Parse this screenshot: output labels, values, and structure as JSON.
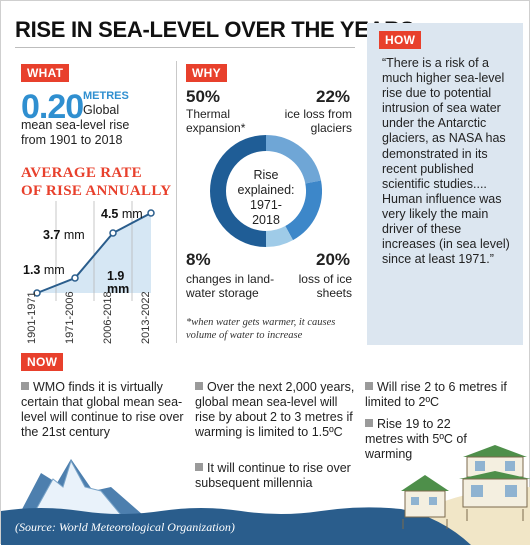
{
  "title": "RISE IN SEA-LEVEL OVER THE YEARS",
  "what": {
    "tag": "WHAT",
    "big_value": "0.20",
    "unit": "METRES",
    "line1": "Global",
    "line2": "mean sea-level rise",
    "line3": "from 1901 to 2018",
    "avg_title_1": "AVERAGE RATE",
    "avg_title_2": "OF RISE ANNUALLY",
    "periods": [
      "1901-1971",
      "1971-2006",
      "2006-2018",
      "2013-2022"
    ],
    "rates": [
      {
        "value": "1.3",
        "unit": "mm"
      },
      {
        "value": "1.9",
        "unit": "mm"
      },
      {
        "value": "3.7",
        "unit": "mm"
      },
      {
        "value": "4.5",
        "unit": "mm"
      }
    ],
    "rate_values_mm": [
      1.3,
      1.9,
      3.7,
      4.5
    ]
  },
  "why": {
    "tag": "WHY",
    "center_1": "Rise",
    "center_2": "explained:",
    "center_3": "1971-",
    "center_4": "2018",
    "segments": [
      {
        "pct": "50%",
        "label_1": "Thermal",
        "label_2": "expansion*",
        "value": 50,
        "color": "#1f5d96"
      },
      {
        "pct": "22%",
        "label_1": "ice loss from",
        "label_2": "glaciers",
        "value": 22,
        "color": "#6fa6d6"
      },
      {
        "pct": "20%",
        "label_1": "loss of ice",
        "label_2": "sheets",
        "value": 20,
        "color": "#3d87c9"
      },
      {
        "pct": "8%",
        "label_1": "changes in land-",
        "label_2": "water storage",
        "value": 8,
        "color": "#9fcbe8"
      }
    ],
    "note": "*when water gets warmer, it causes volume of water to increase"
  },
  "how": {
    "tag": "HOW",
    "quote": "“There is a risk of a much higher sea-level rise due to potential intrusion of sea water under the Antarctic glaciers, as NASA has demonstrated in its recent published scientific studies.... Human influence was very likely the main driver of these increases (in sea level) since at least 1971.”"
  },
  "now": {
    "tag": "NOW",
    "col1": "WMO finds it is virtually certain that global mean sea-level will continue to rise over the 21st century",
    "col2a": "Over the next 2,000 years, global mean sea-level will rise by about 2 to 3 metres if warming is limited to 1.5ºC",
    "col2b": "It will continue to rise over subsequent millennia",
    "col3a": "Will rise 2 to 6 metres if limited to 2ºC",
    "col3b": "Rise 19 to 22 metres with 5ºC of warming"
  },
  "source": "(Source: World Meteorological Organization)",
  "colors": {
    "accent": "#e8402c",
    "blue": "#2f8fd0",
    "panel": "#dce6f0",
    "sea": "#2a5d8c"
  }
}
